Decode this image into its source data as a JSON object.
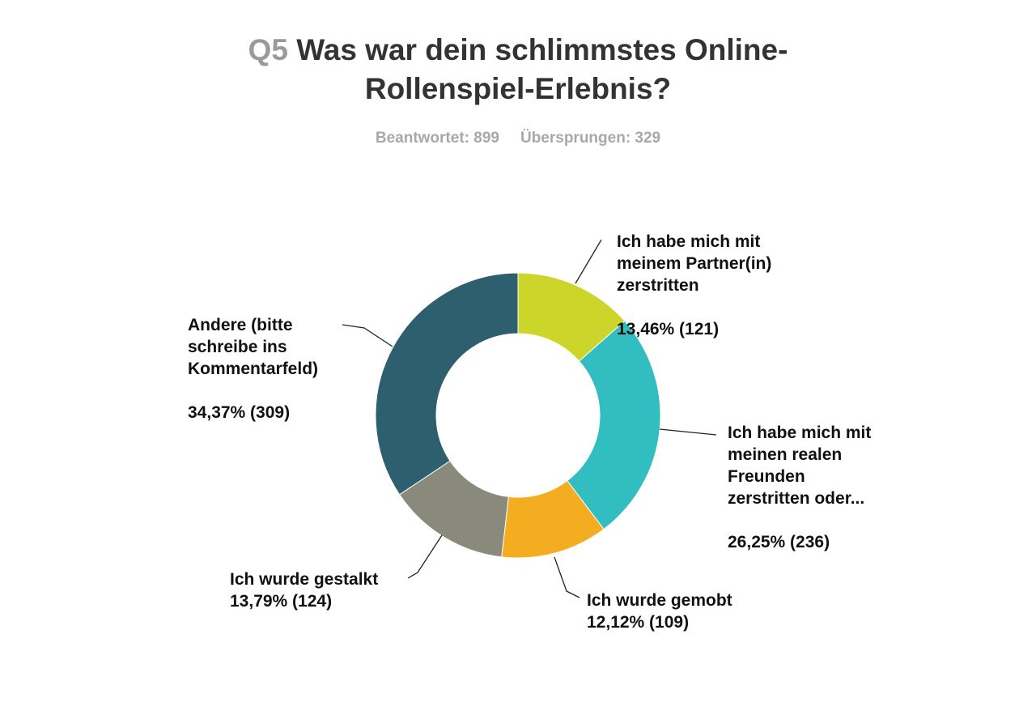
{
  "question": {
    "number": "Q5",
    "title_line1": "Was war dein schlimmstes Online-",
    "title_line2": "Rollenspiel-Erlebnis?"
  },
  "stats": {
    "answered": "Beantwortet: 899",
    "skipped": "Übersprungen: 329"
  },
  "chart_data": {
    "type": "pie",
    "donut": true,
    "title": "Was war dein schlimmstes Online-Rollenspiel-Erlebnis?",
    "categories": [
      "Ich habe mich mit meinem Partner(in) zerstritten",
      "Ich habe mich mit meinen realen Freunden zerstritten oder...",
      "Ich wurde gemobt",
      "Ich wurde gestalkt",
      "Andere (bitte schreibe ins Kommentarfeld)"
    ],
    "values": [
      13.46,
      26.25,
      12.12,
      13.79,
      34.37
    ],
    "counts": [
      121,
      236,
      109,
      124,
      309
    ],
    "colors": [
      "#ccd52a",
      "#32bdc0",
      "#f4ac20",
      "#8a8a7c",
      "#2d5f6e"
    ],
    "labels": [
      {
        "text": "Ich habe mich mit\nmeinem Partner(in)\nzerstritten",
        "value": "13,46% (121)"
      },
      {
        "text": "Ich habe mich mit\nmeinen realen\nFreunden\nzerstritten oder...",
        "value": "26,25% (236)"
      },
      {
        "text": "Ich wurde gemobt",
        "value": "12,12% (109)"
      },
      {
        "text": "Ich wurde gestalkt",
        "value": "13,79% (124)"
      },
      {
        "text": "Andere (bitte\nschreibe ins\nKommentarfeld)",
        "value": "34,37% (309)"
      }
    ]
  }
}
